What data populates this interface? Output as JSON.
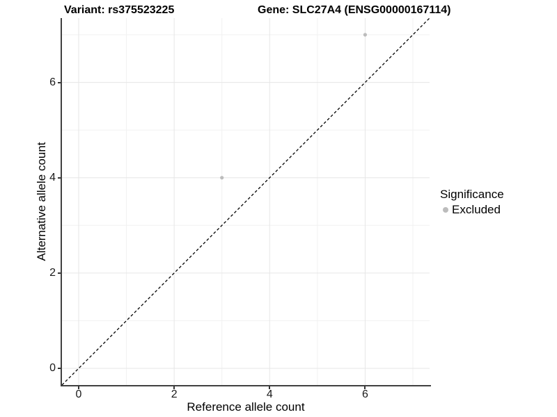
{
  "chart_data": {
    "type": "scatter",
    "titles": {
      "variant": "Variant: rs375523225",
      "gene": "Gene: SLC27A4 (ENSG00000167114)"
    },
    "xlabel": "Reference allele count",
    "ylabel": "Alternative allele count",
    "xlim": [
      -0.35,
      7.35
    ],
    "ylim": [
      -0.35,
      7.35
    ],
    "x_ticks": [
      0,
      2,
      4,
      6
    ],
    "y_ticks": [
      0,
      2,
      4,
      6
    ],
    "x_minor_gridlines": [
      1,
      3,
      5,
      7
    ],
    "y_minor_gridlines": [
      1,
      3,
      5,
      7
    ],
    "grid": "on",
    "legend_position": "right",
    "series": [
      {
        "name": "Excluded",
        "color": "#bcbcbc",
        "points": [
          {
            "x": 3,
            "y": 4
          },
          {
            "x": 6,
            "y": 7
          }
        ]
      }
    ],
    "identity_line": {
      "style": "dashed",
      "color": "#000000",
      "x1": -0.35,
      "y1": -0.35,
      "x2": 7.35,
      "y2": 7.35
    },
    "legend": {
      "title": "Significance",
      "items": [
        {
          "label": "Excluded",
          "color": "#bcbcbc"
        }
      ]
    },
    "colors": {
      "background": "#ffffff",
      "grid_major": "#e6e6e6",
      "grid_minor": "#f1f1f1",
      "axis_line": "#404040",
      "tick": "#333333",
      "text": "#000000"
    }
  }
}
